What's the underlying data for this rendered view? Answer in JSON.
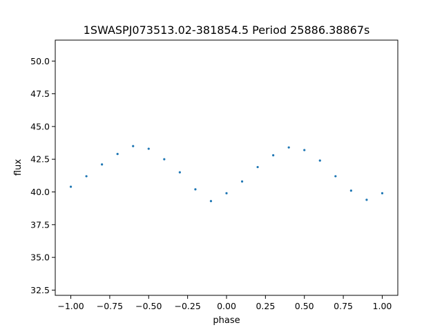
{
  "chart_data": {
    "type": "scatter",
    "title": "1SWASPJ073513.02-381854.5 Period 25886.38867s",
    "xlabel": "phase",
    "ylabel": "flux",
    "xlim": [
      -1.1,
      1.1
    ],
    "ylim": [
      32.1,
      51.6
    ],
    "grid": false,
    "legend": "none",
    "point_color": "#1f77b4",
    "x_ticks": [
      -1.0,
      -0.75,
      -0.5,
      -0.25,
      0.0,
      0.25,
      0.5,
      0.75,
      1.0
    ],
    "x_tick_labels": [
      "−1.00",
      "−0.75",
      "−0.50",
      "−0.25",
      "0.00",
      "0.25",
      "0.50",
      "0.75",
      "1.00"
    ],
    "y_ticks": [
      32.5,
      35.0,
      37.5,
      40.0,
      42.5,
      45.0,
      47.5,
      50.0
    ],
    "y_tick_labels": [
      "32.5",
      "35.0",
      "37.5",
      "40.0",
      "42.5",
      "45.0",
      "47.5",
      "50.0"
    ],
    "series": [
      {
        "x": [
          -1.0,
          -0.9,
          -0.8,
          -0.7,
          -0.6,
          -0.5,
          -0.4,
          -0.3,
          -0.2,
          -0.1,
          0.0,
          0.1,
          0.2,
          0.3,
          0.4,
          0.5,
          0.6,
          0.7,
          0.8,
          0.9,
          1.0
        ],
        "y": [
          40.4,
          41.2,
          42.1,
          42.9,
          43.5,
          43.3,
          42.5,
          41.5,
          40.2,
          39.3,
          39.9,
          40.8,
          41.9,
          42.8,
          43.4,
          43.2,
          42.4,
          41.2,
          40.1,
          39.4,
          39.9
        ]
      }
    ]
  }
}
